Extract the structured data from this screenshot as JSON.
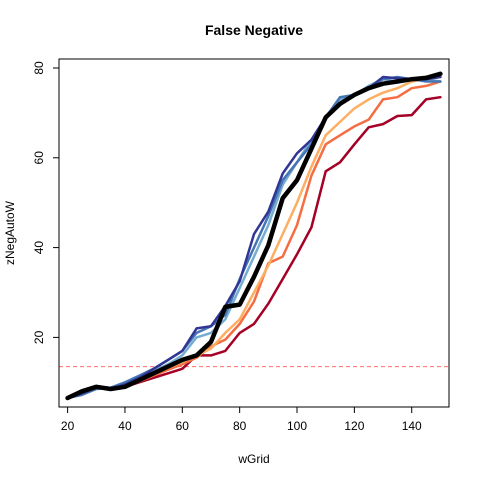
{
  "chart_data": {
    "type": "line",
    "title": "False Negative",
    "xlabel": "wGrid",
    "ylabel": "zNegAutoW",
    "xlim": [
      17,
      153
    ],
    "ylim": [
      4.5,
      82
    ],
    "xticks": [
      20,
      40,
      60,
      80,
      100,
      120,
      140
    ],
    "yticks": [
      20,
      40,
      60,
      80
    ],
    "grid": false,
    "legend": "none",
    "reference_line": {
      "y": 13.5,
      "color": "#ff6b6b",
      "style": "dashed"
    },
    "x": [
      20,
      25,
      30,
      35,
      40,
      45,
      50,
      55,
      60,
      65,
      70,
      75,
      80,
      85,
      90,
      95,
      100,
      105,
      110,
      115,
      120,
      125,
      130,
      135,
      140,
      145,
      150
    ],
    "series": [
      {
        "color": "#a50026",
        "width": 2.5,
        "values": [
          6.5,
          8.0,
          9.0,
          8.5,
          9.0,
          10.0,
          11.0,
          12.0,
          13.0,
          16.0,
          16.0,
          17.0,
          21.0,
          23.0,
          27.5,
          33.0,
          38.5,
          44.5,
          57.0,
          59.0,
          63.0,
          66.8,
          67.5,
          69.3,
          69.5,
          73.0,
          73.5
        ]
      },
      {
        "color": "#f46d43",
        "width": 2.5,
        "values": [
          6.5,
          7.8,
          9.0,
          8.7,
          9.0,
          10.2,
          11.5,
          12.8,
          14.0,
          15.5,
          18.0,
          19.5,
          23.0,
          28.0,
          36.5,
          38.0,
          45.0,
          56.0,
          63.0,
          65.0,
          67.0,
          68.5,
          73.0,
          73.5,
          75.5,
          76.0,
          77.0
        ]
      },
      {
        "color": "#fdae61",
        "width": 2.5,
        "values": [
          6.5,
          7.9,
          9.0,
          8.6,
          9.2,
          10.3,
          11.8,
          13.2,
          14.5,
          16.0,
          17.5,
          21.0,
          24.0,
          30.0,
          36.0,
          43.0,
          50.0,
          58.0,
          65.0,
          68.0,
          71.0,
          73.0,
          74.5,
          75.5,
          77.0,
          77.5,
          78.0
        ]
      },
      {
        "color": "#74add1",
        "width": 2.5,
        "values": [
          6.5,
          7.7,
          9.0,
          8.8,
          9.5,
          10.8,
          12.5,
          14.0,
          16.0,
          20.0,
          21.0,
          24.0,
          31.0,
          38.0,
          45.0,
          54.0,
          59.0,
          64.0,
          69.0,
          73.0,
          74.0,
          76.0,
          77.5,
          77.0,
          77.5,
          77.5,
          77.0
        ]
      },
      {
        "color": "#4575b4",
        "width": 2.5,
        "values": [
          6.5,
          7.2,
          8.5,
          8.8,
          10.0,
          11.5,
          13.0,
          15.0,
          17.0,
          21.0,
          22.5,
          25.0,
          33.0,
          40.0,
          47.0,
          55.0,
          59.0,
          63.0,
          69.0,
          73.5,
          74.0,
          75.5,
          77.5,
          78.0,
          77.5,
          77.0,
          77.0
        ]
      },
      {
        "color": "#313695",
        "width": 2.5,
        "values": [
          6.5,
          7.5,
          8.8,
          8.5,
          9.5,
          11.0,
          13.0,
          15.0,
          17.0,
          22.0,
          22.5,
          27.0,
          32.5,
          43.0,
          48.0,
          56.5,
          61.0,
          64.0,
          69.0,
          72.0,
          74.0,
          75.5,
          78.0,
          77.7,
          77.5,
          77.5,
          78.0
        ]
      },
      {
        "color": "#000000",
        "width": 4.5,
        "values": [
          6.5,
          8.0,
          9.0,
          8.5,
          9.0,
          10.5,
          12.0,
          13.5,
          15.0,
          16.0,
          19.0,
          26.8,
          27.3,
          33.5,
          40.5,
          51.0,
          55.0,
          62.0,
          69.0,
          72.0,
          74.0,
          75.5,
          76.5,
          77.0,
          77.5,
          77.8,
          78.7
        ]
      }
    ]
  }
}
